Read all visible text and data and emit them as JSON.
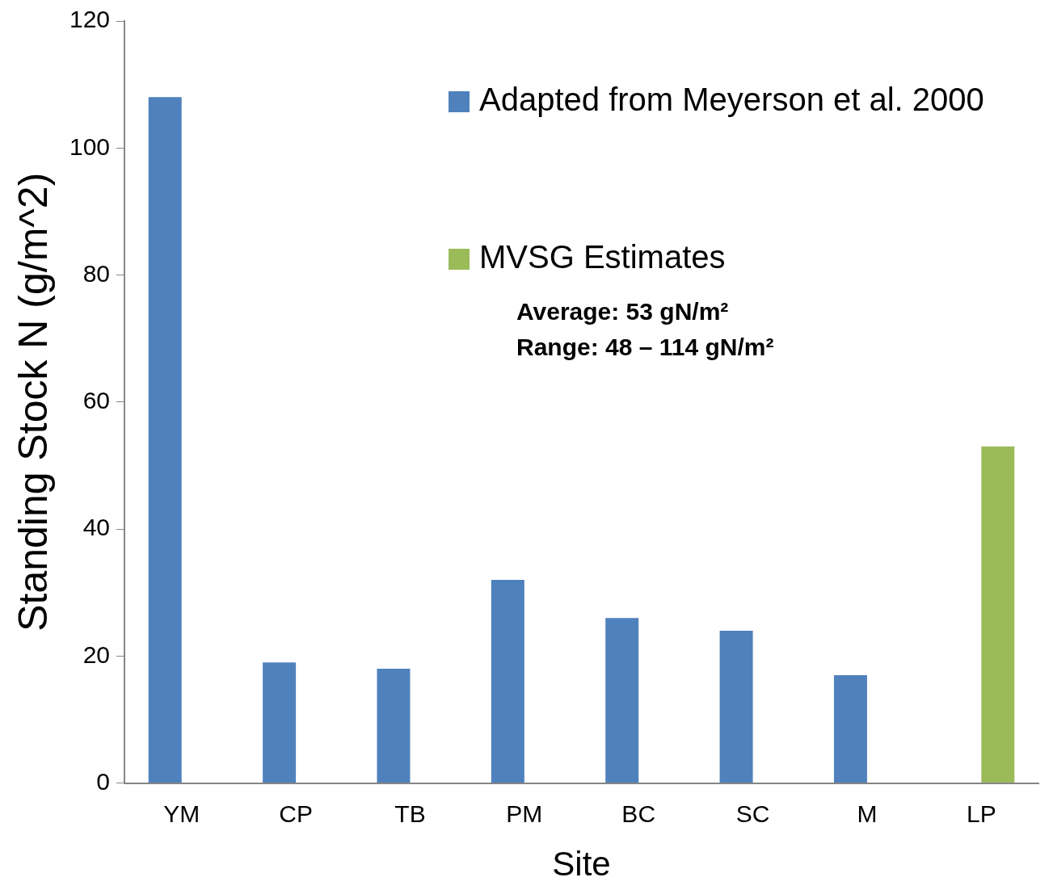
{
  "chart_data": {
    "type": "bar",
    "xlabel": "Site",
    "ylabel": "Standing Stock N (g/m^2)",
    "categories": [
      "YM",
      "CP",
      "TB",
      "PM",
      "BC",
      "SC",
      "M",
      "LP"
    ],
    "series": [
      {
        "name": "Adapted from Meyerson et al. 2000",
        "color": "#4f81bd",
        "values": [
          108,
          19,
          18,
          32,
          26,
          24,
          17,
          null
        ]
      },
      {
        "name": "MVSG Estimates",
        "color": "#9bbb59",
        "values": [
          null,
          null,
          null,
          null,
          null,
          null,
          null,
          53
        ]
      }
    ],
    "ylim": [
      0,
      120
    ],
    "yticks": [
      0,
      20,
      40,
      60,
      80,
      100,
      120
    ],
    "grid": false,
    "legend": "top right",
    "annotations": [
      "Average: 53 gN/m²",
      "Range: 48 – 114 gN/m²"
    ]
  }
}
